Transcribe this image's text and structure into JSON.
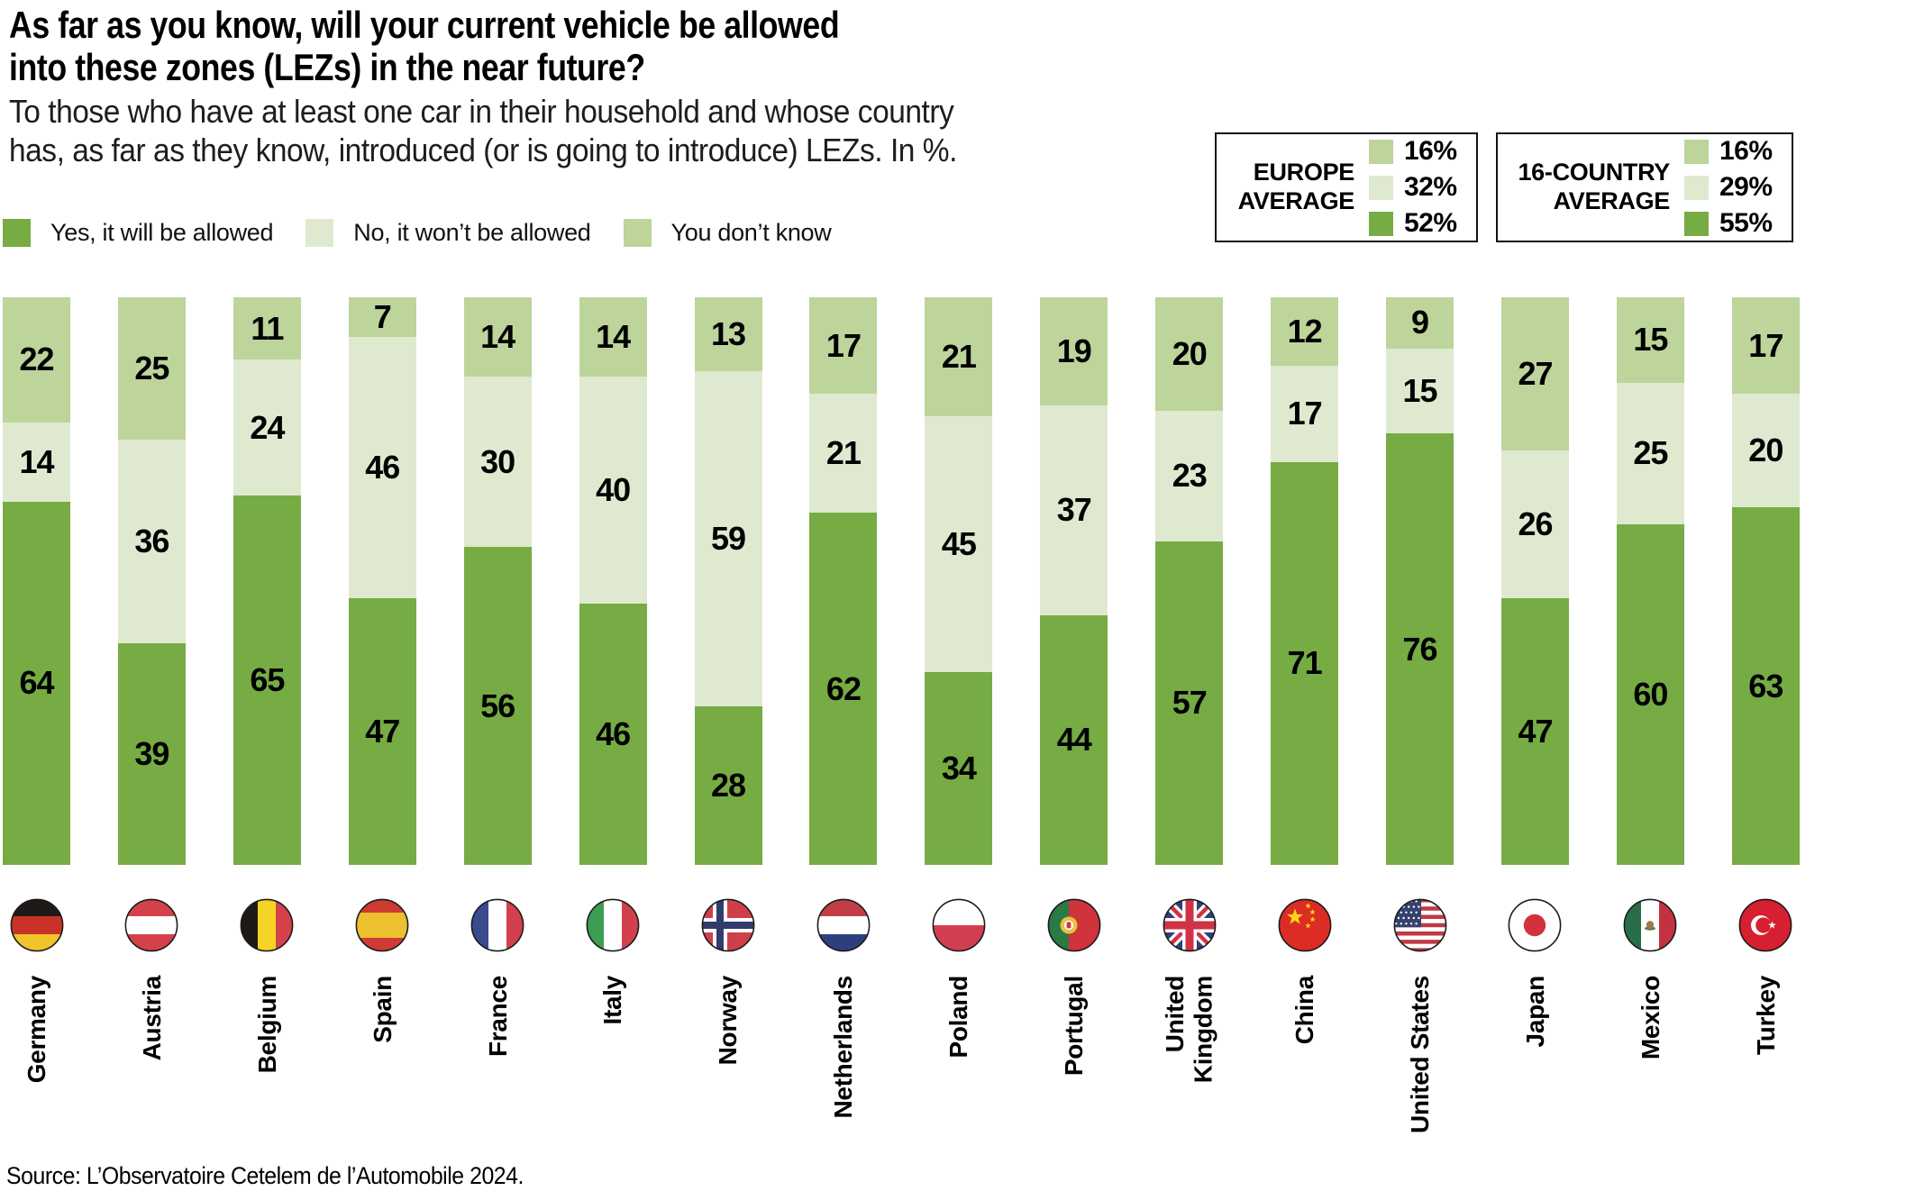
{
  "header": {
    "title": "As far as you know, will your current vehicle be allowed\ninto these zones (LEZs) in the near future?",
    "subtitle": "To those who have at least one car in their household and whose country\nhas, as far as they know, introduced (or is going to introduce) LEZs. In %."
  },
  "legend": [
    {
      "key": "yes",
      "label": "Yes, it will be allowed",
      "color": "#76ac43"
    },
    {
      "key": "no",
      "label": "No, it won’t be allowed",
      "color": "#dfe9cf"
    },
    {
      "key": "dontknow",
      "label": "You don’t know",
      "color": "#bdd49b"
    }
  ],
  "averages": [
    {
      "label": "EUROPE\nAVERAGE",
      "rows": [
        {
          "key": "dontknow",
          "color": "#bdd49b",
          "value": "16%"
        },
        {
          "key": "no",
          "color": "#dfe9cf",
          "value": "32%"
        },
        {
          "key": "yes",
          "color": "#76ac43",
          "value": "52%"
        }
      ]
    },
    {
      "label": "16-COUNTRY\nAVERAGE",
      "rows": [
        {
          "key": "dontknow",
          "color": "#bdd49b",
          "value": "16%"
        },
        {
          "key": "no",
          "color": "#dfe9cf",
          "value": "29%"
        },
        {
          "key": "yes",
          "color": "#76ac43",
          "value": "55%"
        }
      ]
    }
  ],
  "chart_data": {
    "type": "bar",
    "stacked": true,
    "unit": "%",
    "ylim": [
      0,
      100
    ],
    "legend_position": "top-left",
    "value_labels": "inside",
    "categories": [
      {
        "name": "Germany",
        "label": "Germany",
        "flag": "flag-germany"
      },
      {
        "name": "Austria",
        "label": "Austria",
        "flag": "flag-austria"
      },
      {
        "name": "Belgium",
        "label": "Belgium",
        "flag": "flag-belgium"
      },
      {
        "name": "Spain",
        "label": "Spain",
        "flag": "flag-spain"
      },
      {
        "name": "France",
        "label": "France",
        "flag": "flag-france"
      },
      {
        "name": "Italy",
        "label": "Italy",
        "flag": "flag-italy"
      },
      {
        "name": "Norway",
        "label": "Norway",
        "flag": "flag-norway"
      },
      {
        "name": "Netherlands",
        "label": "Netherlands",
        "flag": "flag-netherlands"
      },
      {
        "name": "Poland",
        "label": "Poland",
        "flag": "flag-poland"
      },
      {
        "name": "Portugal",
        "label": "Portugal",
        "flag": "flag-portugal"
      },
      {
        "name": "United Kingdom",
        "label": "United\nKingdom",
        "flag": "flag-united-kingdom"
      },
      {
        "name": "China",
        "label": "China",
        "flag": "flag-china"
      },
      {
        "name": "United States",
        "label": "United States",
        "flag": "flag-united-states"
      },
      {
        "name": "Japan",
        "label": "Japan",
        "flag": "flag-japan"
      },
      {
        "name": "Mexico",
        "label": "Mexico",
        "flag": "flag-mexico"
      },
      {
        "name": "Turkey",
        "label": "Turkey",
        "flag": "flag-turkey"
      }
    ],
    "series": [
      {
        "key": "dontknow",
        "name": "You don’t know",
        "color": "#bdd49b",
        "values": [
          22,
          25,
          11,
          7,
          14,
          14,
          13,
          17,
          21,
          19,
          20,
          12,
          9,
          27,
          15,
          17
        ]
      },
      {
        "key": "no",
        "name": "No, it won’t be allowed",
        "color": "#dfe9cf",
        "values": [
          14,
          36,
          24,
          46,
          30,
          40,
          59,
          21,
          45,
          37,
          23,
          17,
          15,
          26,
          25,
          20
        ]
      },
      {
        "key": "yes",
        "name": "Yes, it will be allowed",
        "color": "#76ac43",
        "values": [
          64,
          39,
          65,
          47,
          56,
          46,
          28,
          62,
          34,
          44,
          57,
          71,
          76,
          47,
          60,
          63
        ]
      }
    ]
  },
  "source": "Source: L’Observatoire Cetelem de l’Automobile 2024."
}
